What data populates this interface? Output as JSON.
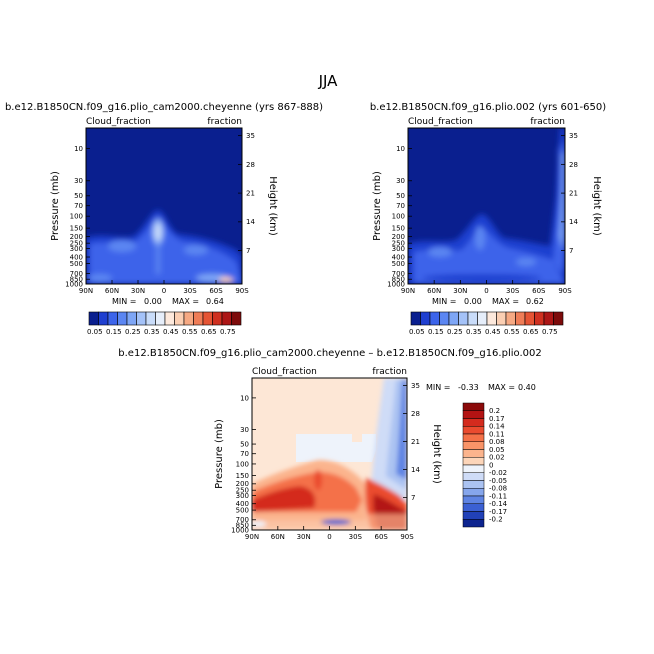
{
  "main_title": "JJA",
  "chart_data": [
    {
      "type": "heatmap",
      "panel": "upper-left",
      "title": "b.e12.B1850CN.f09_g16.plio_cam2000.cheyenne (yrs 867-888)",
      "left_string": "Cloud_fraction",
      "right_string": "fraction",
      "xlabel": "",
      "ylabel": "Pressure (mb)",
      "ylabel_right": "Height (km)",
      "x_ticks": [
        "90N",
        "60N",
        "30N",
        "0",
        "30S",
        "60S",
        "90S"
      ],
      "y_ticks": [
        "10",
        "30",
        "50",
        "70",
        "100",
        "150",
        "200",
        "250",
        "300",
        "400",
        "500",
        "700",
        "850",
        "1000"
      ],
      "y_right_ticks": [
        "35",
        "28",
        "21",
        "14",
        "7"
      ],
      "min_label": "MIN =",
      "min_value": "0.00",
      "max_label": "MAX =",
      "max_value": "0.64",
      "grid": false,
      "legend": "horizontal colorbar below"
    },
    {
      "type": "heatmap",
      "panel": "upper-right",
      "title": "b.e12.B1850CN.f09_g16.plio.002 (yrs 601-650)",
      "left_string": "Cloud_fraction",
      "right_string": "fraction",
      "xlabel": "",
      "ylabel": "Pressure (mb)",
      "ylabel_right": "Height (km)",
      "x_ticks": [
        "90N",
        "60N",
        "30N",
        "0",
        "30S",
        "60S",
        "90S"
      ],
      "y_ticks": [
        "10",
        "30",
        "50",
        "70",
        "100",
        "150",
        "200",
        "250",
        "300",
        "400",
        "500",
        "700",
        "850",
        "1000"
      ],
      "y_right_ticks": [
        "35",
        "28",
        "21",
        "14",
        "7"
      ],
      "min_label": "MIN =",
      "min_value": "0.00",
      "max_label": "MAX =",
      "max_value": "0.62",
      "grid": false,
      "legend": "horizontal colorbar below"
    },
    {
      "type": "heatmap",
      "panel": "bottom-difference",
      "title": "b.e12.B1850CN.f09_g16.plio_cam2000.cheyenne – b.e12.B1850CN.f09_g16.plio.002",
      "left_string": "Cloud_fraction",
      "right_string": "fraction",
      "xlabel": "",
      "ylabel": "Pressure (mb)",
      "ylabel_right": "Height (km)",
      "x_ticks": [
        "90N",
        "60N",
        "30N",
        "0",
        "30S",
        "60S",
        "90S"
      ],
      "y_ticks": [
        "10",
        "30",
        "50",
        "70",
        "100",
        "150",
        "200",
        "250",
        "300",
        "400",
        "500",
        "700",
        "850",
        "1000"
      ],
      "y_right_ticks": [
        "35",
        "28",
        "21",
        "14",
        "7"
      ],
      "min_label": "MIN =",
      "min_value": "-0.33",
      "max_label": "MAX =",
      "max_value": "0.40",
      "grid": false,
      "legend": "vertical colorbar right"
    }
  ],
  "colorbar_abs": {
    "labels": [
      "0.05",
      "0.15",
      "0.25",
      "0.35",
      "0.45",
      "0.55",
      "0.65",
      "0.75"
    ],
    "colors": [
      "#0a1f8f",
      "#1f3fd0",
      "#3c64ea",
      "#5b86f2",
      "#7ea6f6",
      "#a4c2f8",
      "#c9dcf9",
      "#e6eefa",
      "#fde9dc",
      "#fbcfb3",
      "#f6a983",
      "#ef7d57",
      "#e55434",
      "#cf3020",
      "#ac1616",
      "#7d0b0b"
    ]
  },
  "colorbar_diff": {
    "labels": [
      "0.2",
      "0.17",
      "0.14",
      "0.11",
      "0.08",
      "0.05",
      "0.02",
      "0",
      "-0.02",
      "-0.05",
      "-0.08",
      "-0.11",
      "-0.14",
      "-0.17",
      "-0.2"
    ],
    "colors": [
      "#8b0a0a",
      "#b31313",
      "#d42b1e",
      "#ea4b2f",
      "#f47148",
      "#f99468",
      "#fbb48d",
      "#fcd5b9",
      "#eef3fb",
      "#cfdcf7",
      "#abc3f2",
      "#86a6ec",
      "#5f84e3",
      "#3b60d3",
      "#2141b8",
      "#0d248f"
    ]
  },
  "colors": {
    "background_abs": "#0a1f8f",
    "background_diff": "#fde7d6"
  }
}
